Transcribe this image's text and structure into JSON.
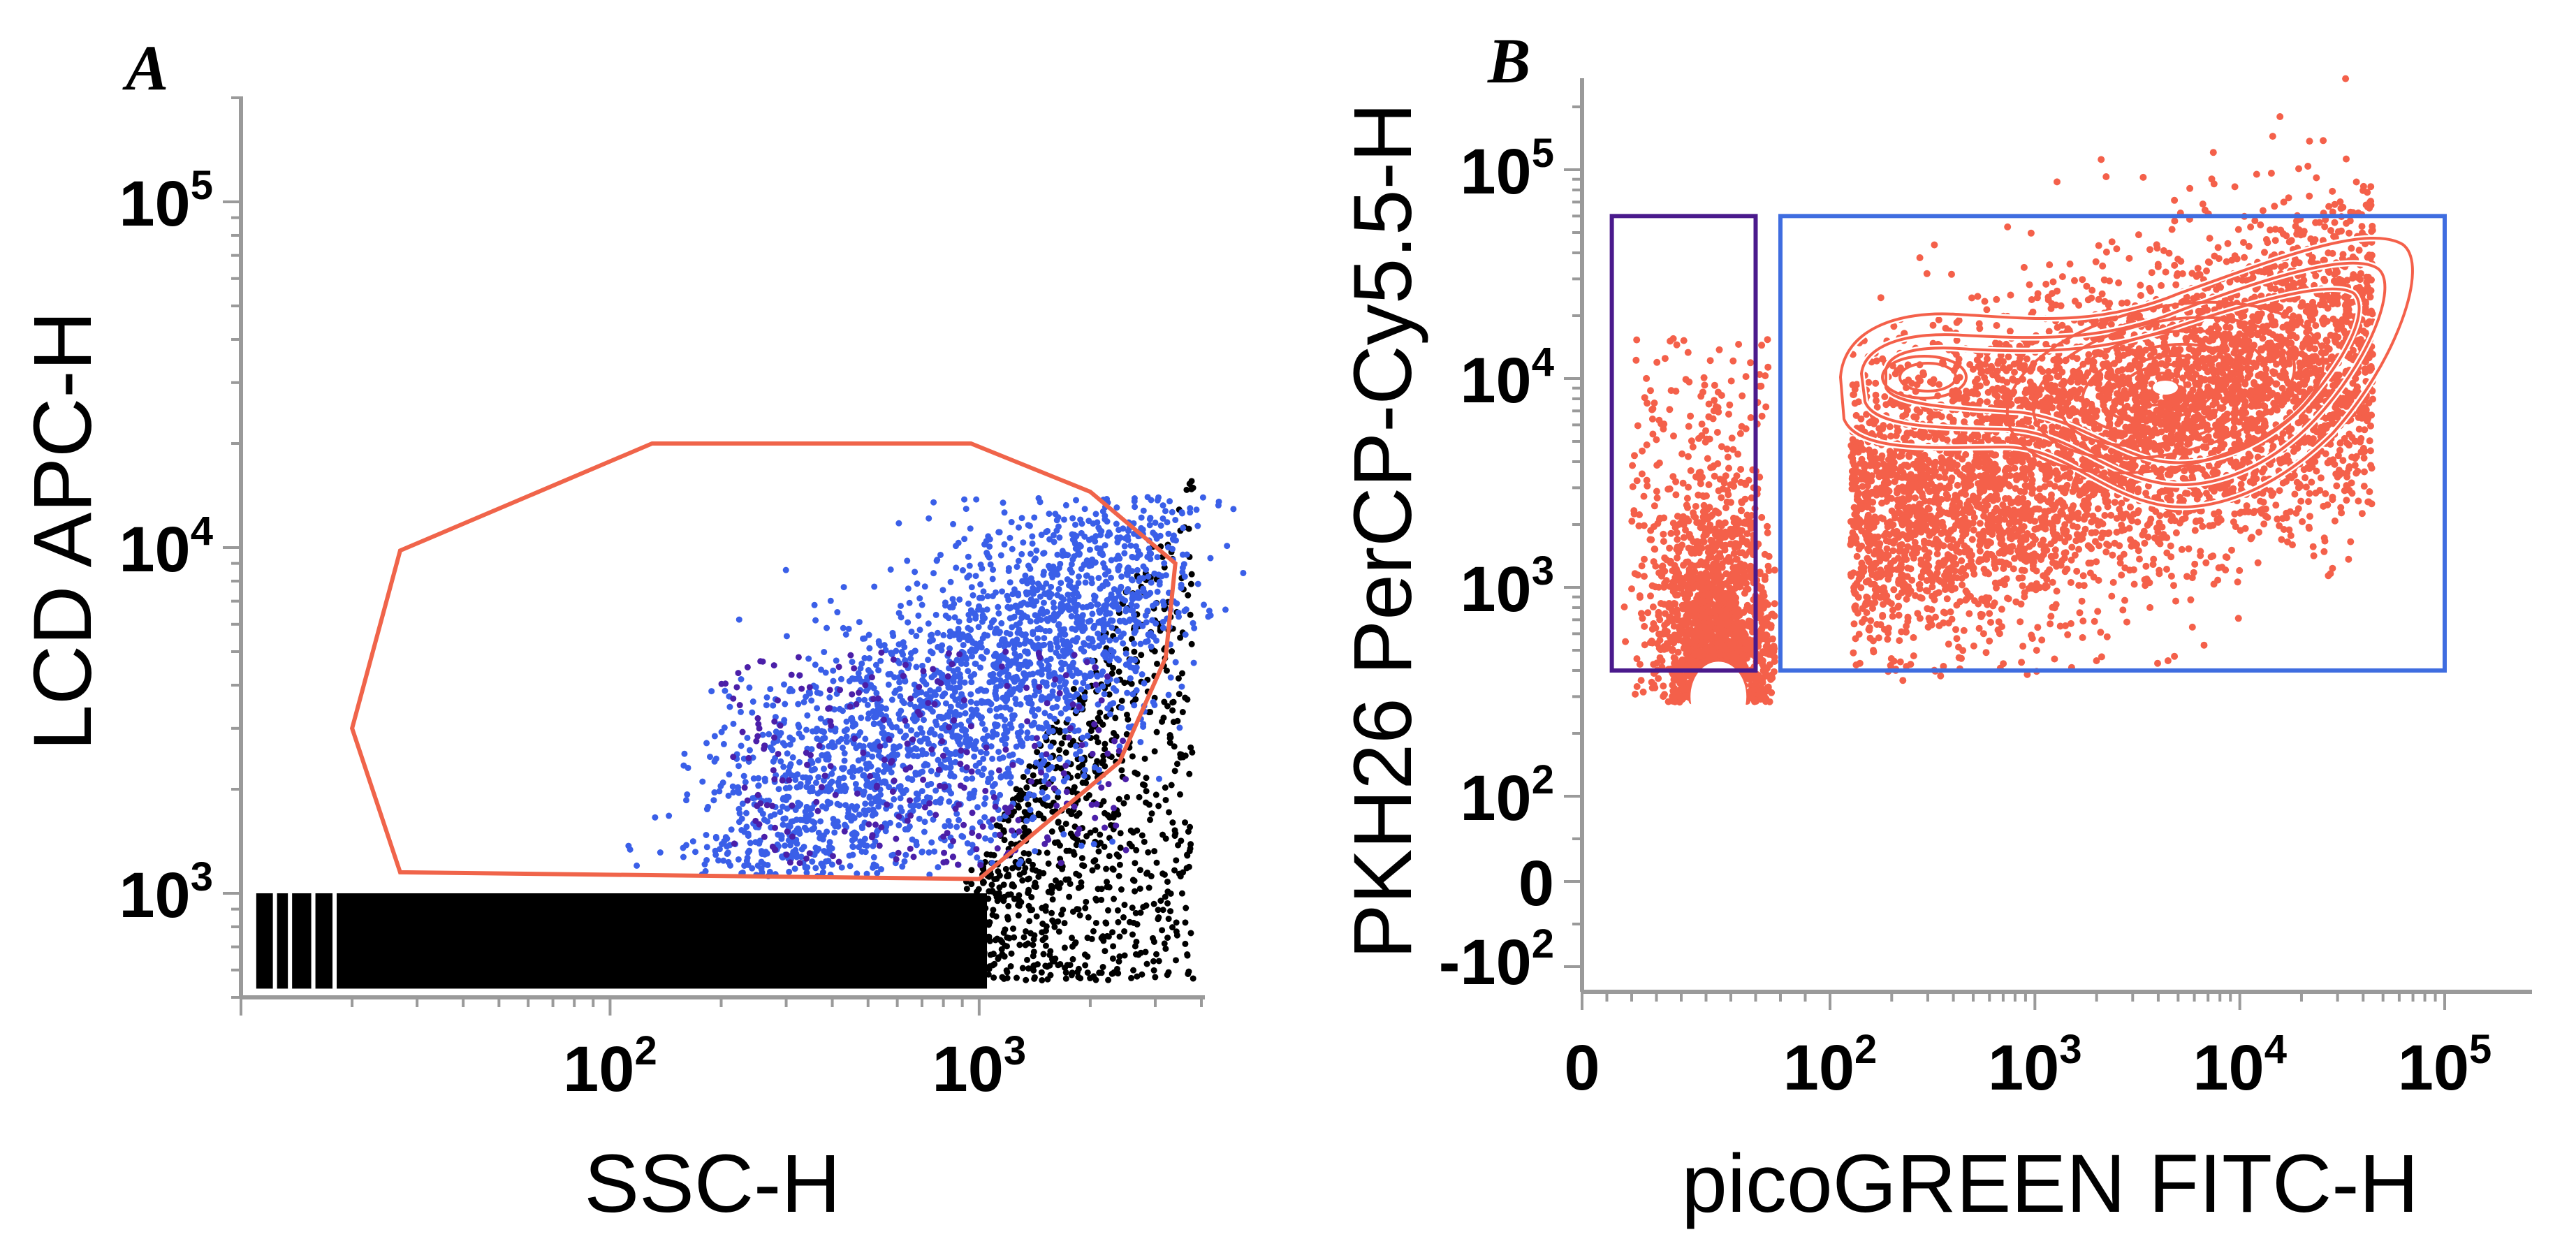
{
  "chart_data": [
    {
      "panel": "A",
      "type": "scatter",
      "xlabel": "SSC-H",
      "ylabel": "LCD APC-H",
      "x_scale": "log",
      "y_scale": "log",
      "xlim": [
        10,
        4000
      ],
      "ylim": [
        500,
        200000
      ],
      "x_ticks": [
        {
          "value": 100,
          "label": "10",
          "exp": "2"
        },
        {
          "value": 1000,
          "label": "10",
          "exp": "3"
        }
      ],
      "y_ticks": [
        {
          "value": 1000,
          "label": "10",
          "exp": "3"
        },
        {
          "value": 10000,
          "label": "10",
          "exp": "4"
        },
        {
          "value": 100000,
          "label": "10",
          "exp": "5"
        }
      ],
      "series": [
        {
          "id": "ungated_events",
          "color": "#000000",
          "x_range": [
            10,
            4000
          ],
          "y_range": [
            530,
            1050
          ]
        },
        {
          "id": "gated_events",
          "color": "#3a5fe8",
          "x_range": [
            150,
            3000
          ],
          "y_range": [
            1100,
            12000
          ]
        },
        {
          "id": "gated_events_dark",
          "color": "#4b1fa8",
          "x_range": [
            200,
            2500
          ],
          "y_range": [
            1200,
            5000
          ]
        }
      ],
      "gate": {
        "type": "polygon",
        "color": "#f0644a",
        "vertices": [
          [
            20,
            3000
          ],
          [
            27,
            9800
          ],
          [
            130,
            20000
          ],
          [
            950,
            20000
          ],
          [
            2000,
            14500
          ],
          [
            3400,
            9000
          ],
          [
            3200,
            4800
          ],
          [
            2400,
            2400
          ],
          [
            1000,
            1100
          ],
          [
            27,
            1150
          ]
        ]
      }
    },
    {
      "panel": "B",
      "type": "scatter",
      "xlabel": "picoGREEN FITC-H",
      "ylabel": "PKH26 PerCP-Cy5.5-H",
      "x_scale": "biexponential",
      "y_scale": "biexponential",
      "xlim": [
        -10,
        200000
      ],
      "ylim": [
        -300,
        200000
      ],
      "x_ticks": [
        {
          "value": 0,
          "label": "0",
          "exp": ""
        },
        {
          "value": 100,
          "label": "10",
          "exp": "2"
        },
        {
          "value": 1000,
          "label": "10",
          "exp": "3"
        },
        {
          "value": 10000,
          "label": "10",
          "exp": "4"
        },
        {
          "value": 100000,
          "label": "10",
          "exp": "5"
        }
      ],
      "y_ticks": [
        {
          "value": -100,
          "label": "-10",
          "exp": "2"
        },
        {
          "value": 0,
          "label": "0",
          "exp": ""
        },
        {
          "value": 100,
          "label": "10",
          "exp": "2"
        },
        {
          "value": 1000,
          "label": "10",
          "exp": "3"
        },
        {
          "value": 10000,
          "label": "10",
          "exp": "4"
        },
        {
          "value": 100000,
          "label": "10",
          "exp": "5"
        }
      ],
      "color": "#f4604a",
      "populations": [
        {
          "id": "main",
          "center": [
            4000,
            8500
          ],
          "spread": "large"
        },
        {
          "id": "secondary",
          "center": [
            300,
            9500
          ],
          "spread": "medium"
        },
        {
          "id": "negative",
          "center": [
            55,
            300
          ],
          "spread": "small"
        }
      ],
      "gates": [
        {
          "id": "gate-left",
          "type": "rectangle",
          "color": "#4a1a8c",
          "x": [
            12,
            70
          ],
          "y": [
            400,
            60000
          ]
        },
        {
          "id": "gate-right",
          "type": "rectangle",
          "color": "#3f6de0",
          "x": [
            80,
            100000
          ],
          "y": [
            400,
            60000
          ]
        }
      ]
    }
  ],
  "panels": {
    "a_label": "A",
    "b_label": "B"
  }
}
